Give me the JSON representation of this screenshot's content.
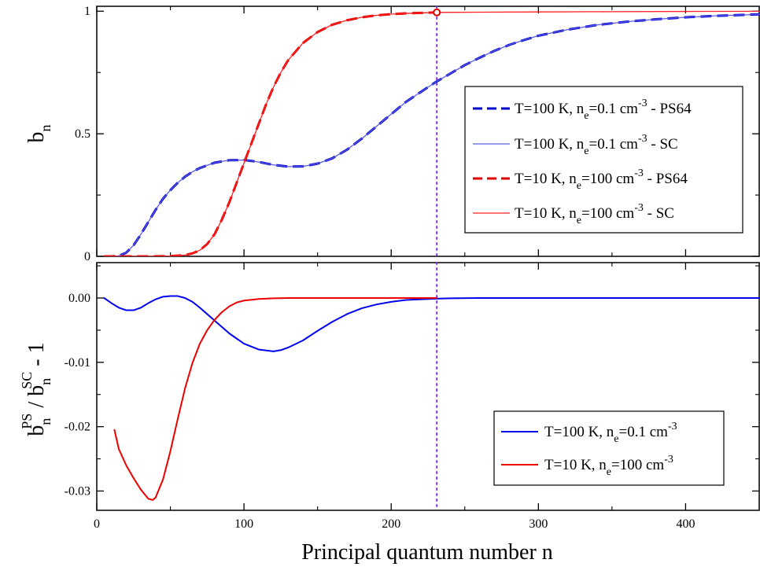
{
  "chart_data": [
    {
      "type": "line",
      "panel": "top",
      "xlabel": "",
      "ylabel": {
        "base": "b",
        "sub": "n"
      },
      "xlim": [
        0,
        450
      ],
      "ylim": [
        0,
        1.02
      ],
      "xticks": [
        0,
        100,
        200,
        300,
        400
      ],
      "yticks": [
        0,
        0.5,
        1
      ],
      "ytick_labels": [
        "0",
        "0.5",
        "1"
      ],
      "legend_position": "right-center",
      "reference_line": {
        "x": 231,
        "style": "dotted",
        "color": "#8a2be2"
      },
      "marker": {
        "x": 231,
        "y": 0.995,
        "shape": "open-circle",
        "color": "#e00000"
      },
      "series": [
        {
          "legend": {
            "a": "T=100 K, n",
            "sub": "e",
            "b": "=0.1 cm",
            "sup": "-3",
            "c": " - PS64"
          },
          "color": "#0000cc",
          "style": "dashed",
          "width": 3,
          "x": [
            5,
            10,
            15,
            20,
            25,
            30,
            35,
            40,
            45,
            50,
            55,
            60,
            65,
            70,
            80,
            90,
            100,
            110,
            120,
            130,
            140,
            150,
            160,
            170,
            180,
            190,
            200,
            210,
            220,
            230,
            240,
            250,
            260,
            270,
            280,
            290,
            300,
            320,
            340,
            360,
            380,
            400,
            420,
            440,
            450
          ],
          "y": [
            0.0,
            0.0,
            0.002,
            0.015,
            0.045,
            0.09,
            0.14,
            0.19,
            0.235,
            0.27,
            0.3,
            0.325,
            0.345,
            0.36,
            0.382,
            0.392,
            0.393,
            0.385,
            0.373,
            0.366,
            0.367,
            0.378,
            0.4,
            0.435,
            0.48,
            0.53,
            0.58,
            0.63,
            0.67,
            0.71,
            0.745,
            0.78,
            0.81,
            0.838,
            0.862,
            0.882,
            0.9,
            0.925,
            0.944,
            0.957,
            0.967,
            0.975,
            0.981,
            0.985,
            0.987
          ]
        },
        {
          "legend": {
            "a": "T=100 K, n",
            "sub": "e",
            "b": "=0.1 cm",
            "sup": "-3",
            "c": " - SC"
          },
          "color": "#5a5ae6",
          "style": "solid",
          "width": 1.3,
          "x": [
            5,
            10,
            15,
            20,
            25,
            30,
            35,
            40,
            45,
            50,
            55,
            60,
            65,
            70,
            80,
            90,
            100,
            110,
            120,
            130,
            140,
            150,
            160,
            170,
            180,
            190,
            200,
            210,
            220,
            230,
            240,
            250,
            260,
            270,
            280,
            290,
            300,
            320,
            340,
            360,
            380,
            400,
            420,
            440,
            450
          ],
          "y": [
            0.0,
            0.0,
            0.002,
            0.015,
            0.045,
            0.09,
            0.14,
            0.19,
            0.235,
            0.27,
            0.3,
            0.325,
            0.345,
            0.36,
            0.382,
            0.392,
            0.393,
            0.385,
            0.373,
            0.366,
            0.367,
            0.378,
            0.4,
            0.435,
            0.48,
            0.53,
            0.58,
            0.63,
            0.67,
            0.71,
            0.745,
            0.78,
            0.81,
            0.838,
            0.862,
            0.882,
            0.9,
            0.925,
            0.944,
            0.957,
            0.967,
            0.975,
            0.981,
            0.985,
            0.987
          ]
        },
        {
          "legend": {
            "a": "T=10 K, n",
            "sub": "e",
            "b": "=100 cm",
            "sup": "-3",
            "c": " - PS64"
          },
          "color": "#e00000",
          "style": "dashed",
          "width": 3,
          "x": [
            5,
            20,
            40,
            50,
            60,
            65,
            70,
            75,
            80,
            85,
            90,
            95,
            100,
            105,
            110,
            115,
            120,
            125,
            130,
            140,
            150,
            160,
            170,
            180,
            190,
            200,
            210,
            220,
            231
          ],
          "y": [
            0.0,
            0.0,
            0.0,
            0.001,
            0.005,
            0.012,
            0.025,
            0.05,
            0.09,
            0.15,
            0.22,
            0.3,
            0.38,
            0.46,
            0.54,
            0.62,
            0.69,
            0.75,
            0.8,
            0.87,
            0.915,
            0.945,
            0.963,
            0.975,
            0.983,
            0.988,
            0.991,
            0.993,
            0.995
          ]
        },
        {
          "legend": {
            "a": "T=10 K, n",
            "sub": "e",
            "b": "=100 cm",
            "sup": "-3",
            "c": " - SC"
          },
          "color": "#ff2020",
          "style": "solid",
          "width": 1.3,
          "x": [
            5,
            20,
            40,
            50,
            60,
            65,
            70,
            75,
            80,
            85,
            90,
            95,
            100,
            105,
            110,
            115,
            120,
            125,
            130,
            140,
            150,
            160,
            170,
            180,
            190,
            200,
            210,
            220,
            231,
            260,
            300,
            350,
            400,
            450
          ],
          "y": [
            0.0,
            0.0,
            0.0,
            0.001,
            0.005,
            0.012,
            0.025,
            0.05,
            0.09,
            0.15,
            0.22,
            0.3,
            0.38,
            0.46,
            0.54,
            0.62,
            0.69,
            0.75,
            0.8,
            0.87,
            0.915,
            0.945,
            0.963,
            0.975,
            0.983,
            0.988,
            0.991,
            0.993,
            0.995,
            0.996,
            0.997,
            0.998,
            0.999,
            0.9995
          ]
        }
      ]
    },
    {
      "type": "line",
      "panel": "bottom",
      "xlabel": "Principal quantum number n",
      "ylabel": {
        "a": "b",
        "sub1": "n",
        "sup1": "PS",
        "b": " / b",
        "sub2": "n",
        "sup2": "SC",
        "c": " - 1"
      },
      "xlim": [
        0,
        450
      ],
      "ylim": [
        -0.033,
        0.0055
      ],
      "xticks": [
        0,
        100,
        200,
        300,
        400
      ],
      "xtick_labels": [
        "0",
        "100",
        "200",
        "300",
        "400"
      ],
      "yticks": [
        0.0,
        -0.01,
        -0.02,
        -0.03
      ],
      "ytick_labels": [
        "0.00",
        "-0.01",
        "-0.02",
        "-0.03"
      ],
      "legend_position": "bottom-right",
      "reference_line": {
        "x": 231,
        "style": "dotted",
        "color": "#8a2be2"
      },
      "series": [
        {
          "legend": {
            "a": "T=100 K, n",
            "sub": "e",
            "b": "=0.1 cm",
            "sup": "-3"
          },
          "color": "#0000ee",
          "style": "solid",
          "width": 2,
          "x": [
            5,
            10,
            15,
            20,
            25,
            30,
            35,
            40,
            45,
            50,
            55,
            60,
            65,
            70,
            80,
            90,
            100,
            110,
            120,
            125,
            130,
            140,
            150,
            160,
            170,
            180,
            190,
            200,
            210,
            220,
            230,
            240,
            260,
            280,
            300,
            350,
            400,
            450
          ],
          "y": [
            0.0,
            -0.0008,
            -0.0015,
            -0.0019,
            -0.0019,
            -0.0015,
            -0.0008,
            -0.0002,
            0.0002,
            0.0003,
            0.0003,
            0.0,
            -0.0006,
            -0.0015,
            -0.0035,
            -0.0055,
            -0.0071,
            -0.008,
            -0.0083,
            -0.0081,
            -0.0077,
            -0.0066,
            -0.0051,
            -0.0037,
            -0.0025,
            -0.0016,
            -0.001,
            -0.0006,
            -0.0003,
            -0.0002,
            -0.0001,
            -5e-05,
            0.0,
            0.0,
            0.0,
            0.0,
            0.0,
            0.0
          ]
        },
        {
          "legend": {
            "a": "T=10 K, n",
            "sub": "e",
            "b": "=100 cm",
            "sup": "-3"
          },
          "color": "#ee0000",
          "style": "solid",
          "width": 2,
          "x": [
            12,
            15,
            20,
            25,
            30,
            35,
            38,
            40,
            45,
            50,
            55,
            60,
            65,
            70,
            75,
            80,
            85,
            90,
            95,
            100,
            110,
            120,
            130,
            140,
            160,
            180,
            200,
            231
          ],
          "y": [
            -0.0205,
            -0.0235,
            -0.026,
            -0.028,
            -0.0298,
            -0.0312,
            -0.0314,
            -0.031,
            -0.0282,
            -0.0238,
            -0.0188,
            -0.014,
            -0.0101,
            -0.0071,
            -0.005,
            -0.0034,
            -0.0022,
            -0.0013,
            -0.0007,
            -0.0004,
            -0.00015,
            -5e-05,
            0.0,
            0.0,
            0.0,
            0.0,
            0.0,
            0.0
          ]
        }
      ]
    }
  ]
}
